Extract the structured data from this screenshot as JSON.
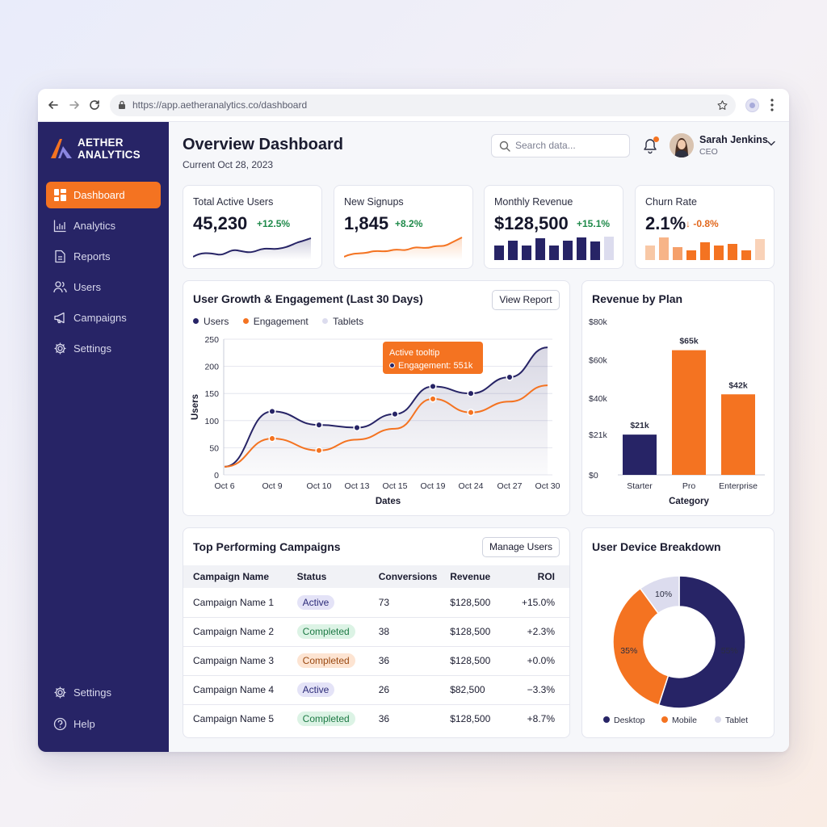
{
  "browser": {
    "url": "https://app.aetheranalytics.co/dashboard"
  },
  "sidebar": {
    "logo_line1": "AETHER",
    "logo_line2": "ANALYTICS",
    "items": [
      {
        "label": "Dashboard",
        "icon": "dashboard-icon",
        "active": true
      },
      {
        "label": "Analytics",
        "icon": "analytics-icon",
        "active": false
      },
      {
        "label": "Reports",
        "icon": "reports-icon",
        "active": false
      },
      {
        "label": "Users",
        "icon": "users-icon",
        "active": false
      },
      {
        "label": "Campaigns",
        "icon": "campaigns-icon",
        "active": false
      },
      {
        "label": "Settings",
        "icon": "gear-icon",
        "active": false
      }
    ],
    "bottom_items": [
      {
        "label": "Settings",
        "icon": "gear-icon"
      },
      {
        "label": "Help",
        "icon": "help-icon"
      }
    ]
  },
  "header": {
    "title": "Overview Dashboard",
    "date": "Current Oct 28, 2023",
    "search_placeholder": "Search data...",
    "user_name": "Sarah Jenkins",
    "user_role": "CEO"
  },
  "colors": {
    "navy": "#272466",
    "orange": "#f47321",
    "lavender": "#dcdcee",
    "positive": "#1f8a4a",
    "negative": "#e2681d"
  },
  "kpis": [
    {
      "label": "Total Active Users",
      "value": "45,230",
      "delta": "+12.5%",
      "trend": "up"
    },
    {
      "label": "New Signups",
      "value": "1,845",
      "delta": "+8.2%",
      "trend": "up"
    },
    {
      "label": "Monthly Revenue",
      "value": "$128,500",
      "delta": "+15.1%",
      "trend": "up"
    },
    {
      "label": "Churn Rate",
      "value": "2.1%",
      "delta": "↓ -0.8%",
      "trend": "down"
    }
  ],
  "growth_chart": {
    "title": "User Growth & Engagement (Last 30 Days)",
    "button": "View Report",
    "legend": [
      "Users",
      "Engagement",
      "Tablets"
    ],
    "tooltip_title": "Active tooltip",
    "tooltip_value": "Engagement: 551k"
  },
  "revenue_chart": {
    "title": "Revenue by Plan"
  },
  "campaigns": {
    "title": "Top Performing Campaigns",
    "button": "Manage Users",
    "headers": [
      "Campaign Name",
      "Status",
      "Conversions",
      "Revenue",
      "ROI"
    ],
    "rows": [
      {
        "name": "Campaign Name 1",
        "status": "Active",
        "conversions": "73",
        "revenue": "$128,500",
        "roi": "+15.0%"
      },
      {
        "name": "Campaign Name 2",
        "status": "Completed",
        "conversions": "38",
        "revenue": "$128,500",
        "roi": "+2.3%"
      },
      {
        "name": "Campaign Name 3",
        "status": "Completed",
        "conversions": "36",
        "revenue": "$128,500",
        "roi": "+0.0%"
      },
      {
        "name": "Campaign Name 4",
        "status": "Active",
        "conversions": "26",
        "revenue": "$82,500",
        "roi": "−3.3%"
      },
      {
        "name": "Campaign Name 5",
        "status": "Completed",
        "conversions": "36",
        "revenue": "$128,500",
        "roi": "+8.7%"
      }
    ]
  },
  "device_chart": {
    "title": "User Device Breakdown"
  },
  "chart_data": [
    {
      "type": "line",
      "title": "User Growth & Engagement (Last 30 Days)",
      "xlabel": "Dates",
      "ylabel": "Users",
      "ylim": [
        0,
        250
      ],
      "yticks": [
        0,
        50,
        100,
        150,
        200,
        250
      ],
      "x": [
        "Oct 6",
        "Oct 9",
        "Oct 10",
        "Oct 13",
        "Oct 15",
        "Oct 19",
        "Oct 24",
        "Oct 27",
        "Oct 30"
      ],
      "series": [
        {
          "name": "Users",
          "values": [
            15,
            117,
            92,
            87,
            112,
            163,
            150,
            180,
            235
          ]
        },
        {
          "name": "Engagement",
          "values": [
            15,
            67,
            45,
            65,
            85,
            140,
            115,
            135,
            165
          ]
        }
      ],
      "legend": [
        "Users",
        "Engagement",
        "Tablets"
      ],
      "grid": true
    },
    {
      "type": "bar",
      "title": "Revenue by Plan",
      "xlabel": "Category",
      "categories": [
        "Starter",
        "Pro",
        "Enterprise"
      ],
      "values": [
        21,
        65,
        42
      ],
      "data_labels": [
        "$21k",
        "$65k",
        "$42k"
      ],
      "ylim": [
        0,
        80
      ],
      "yticks": [
        "$0",
        "$21k",
        "$40k",
        "$60k",
        "$80k"
      ],
      "colors": [
        "#272466",
        "#f47321",
        "#f47321"
      ]
    },
    {
      "type": "pie",
      "title": "User Device Breakdown",
      "labels": [
        "Desktop",
        "Mobile",
        "Tablet"
      ],
      "values": [
        55,
        35,
        10
      ],
      "data_labels": [
        "55%",
        "35%",
        "10%"
      ],
      "colors": [
        "#272466",
        "#f47321",
        "#dcdcee"
      ],
      "donut": true
    }
  ]
}
